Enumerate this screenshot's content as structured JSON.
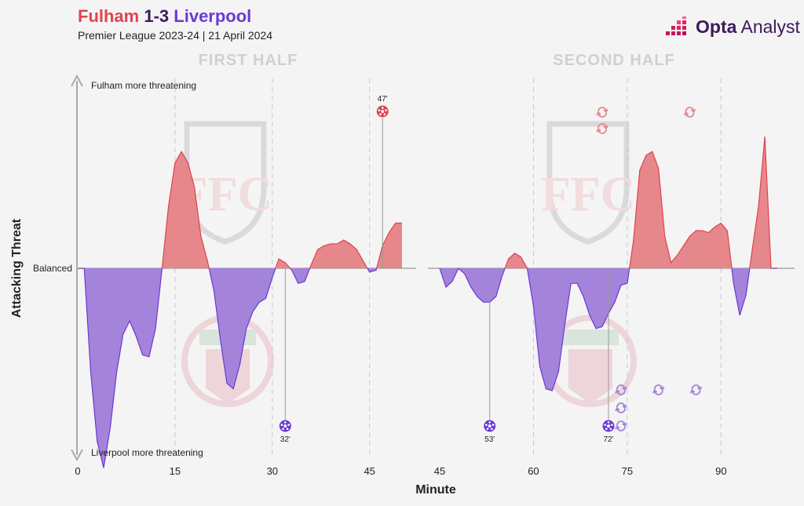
{
  "title": {
    "home": "Fulham",
    "score": "1-3",
    "away": "Liverpool"
  },
  "subtitle": "Premier League 2023-24 | 21 April 2024",
  "brand": {
    "bold": "Opta",
    "rest": " Analyst"
  },
  "colors": {
    "home": "#e0434f",
    "home_fill": "#e6878c",
    "away": "#6a3ad2",
    "away_fill": "#a483db",
    "text": "#222222",
    "axis": "#999999"
  },
  "chart_data": {
    "type": "area",
    "ylabel": "Attacking Threat",
    "xlabel": "Minute",
    "y_top_label": "Fulham more threatening",
    "y_bottom_label": "Liverpool more threatening",
    "baseline_label": "Balanced",
    "panels": [
      {
        "title": "FIRST HALF",
        "xlim": [
          0,
          50
        ],
        "ticks": [
          0,
          15,
          30,
          45
        ],
        "series": [
          [
            0,
            0
          ],
          [
            1,
            0
          ],
          [
            2,
            -0.55
          ],
          [
            3,
            -0.92
          ],
          [
            4,
            -1.06
          ],
          [
            5,
            -0.85
          ],
          [
            6,
            -0.55
          ],
          [
            7,
            -0.35
          ],
          [
            8,
            -0.28
          ],
          [
            9,
            -0.36
          ],
          [
            10,
            -0.46
          ],
          [
            11,
            -0.47
          ],
          [
            12,
            -0.32
          ],
          [
            13,
            0
          ],
          [
            14,
            0.33
          ],
          [
            15,
            0.56
          ],
          [
            16,
            0.62
          ],
          [
            17,
            0.56
          ],
          [
            18,
            0.43
          ],
          [
            19,
            0.17
          ],
          [
            20,
            0.04
          ],
          [
            21,
            -0.12
          ],
          [
            22,
            -0.38
          ],
          [
            23,
            -0.61
          ],
          [
            24,
            -0.64
          ],
          [
            25,
            -0.51
          ],
          [
            26,
            -0.32
          ],
          [
            27,
            -0.23
          ],
          [
            28,
            -0.18
          ],
          [
            29,
            -0.16
          ],
          [
            30,
            -0.05
          ],
          [
            31,
            0.05
          ],
          [
            32,
            0.03
          ],
          [
            33,
            -0.01
          ],
          [
            34,
            -0.08
          ],
          [
            35,
            -0.07
          ],
          [
            36,
            0.02
          ],
          [
            37,
            0.1
          ],
          [
            38,
            0.12
          ],
          [
            39,
            0.13
          ],
          [
            40,
            0.13
          ],
          [
            41,
            0.15
          ],
          [
            42,
            0.13
          ],
          [
            43,
            0.1
          ],
          [
            44,
            0.04
          ],
          [
            45,
            -0.02
          ],
          [
            46,
            -0.01
          ],
          [
            47,
            0.12
          ],
          [
            48,
            0.19
          ],
          [
            49,
            0.24
          ],
          [
            50,
            0.24
          ]
        ],
        "goals": [
          {
            "minute": 47,
            "label": "47'",
            "team": "home"
          },
          {
            "minute": 32,
            "label": "32'",
            "team": "away"
          }
        ],
        "subs": []
      },
      {
        "title": "SECOND HALF",
        "xlim": [
          45,
          99
        ],
        "ticks": [
          45,
          60,
          75,
          90
        ],
        "series": [
          [
            45,
            0
          ],
          [
            46,
            -0.1
          ],
          [
            47,
            -0.07
          ],
          [
            48,
            0
          ],
          [
            49,
            -0.03
          ],
          [
            50,
            -0.1
          ],
          [
            51,
            -0.15
          ],
          [
            52,
            -0.18
          ],
          [
            53,
            -0.18
          ],
          [
            54,
            -0.15
          ],
          [
            55,
            -0.04
          ],
          [
            56,
            0.05
          ],
          [
            57,
            0.08
          ],
          [
            58,
            0.06
          ],
          [
            59,
            0
          ],
          [
            60,
            -0.2
          ],
          [
            61,
            -0.52
          ],
          [
            62,
            -0.64
          ],
          [
            63,
            -0.65
          ],
          [
            64,
            -0.55
          ],
          [
            65,
            -0.3
          ],
          [
            66,
            -0.08
          ],
          [
            67,
            -0.08
          ],
          [
            68,
            -0.15
          ],
          [
            69,
            -0.25
          ],
          [
            70,
            -0.32
          ],
          [
            71,
            -0.31
          ],
          [
            72,
            -0.24
          ],
          [
            73,
            -0.18
          ],
          [
            74,
            -0.09
          ],
          [
            75,
            -0.08
          ],
          [
            76,
            0.15
          ],
          [
            77,
            0.52
          ],
          [
            78,
            0.6
          ],
          [
            79,
            0.62
          ],
          [
            80,
            0.53
          ],
          [
            81,
            0.17
          ],
          [
            82,
            0.03
          ],
          [
            83,
            0.07
          ],
          [
            84,
            0.12
          ],
          [
            85,
            0.17
          ],
          [
            86,
            0.2
          ],
          [
            87,
            0.2
          ],
          [
            88,
            0.19
          ],
          [
            89,
            0.22
          ],
          [
            90,
            0.24
          ],
          [
            91,
            0.2
          ],
          [
            92,
            -0.08
          ],
          [
            93,
            -0.25
          ],
          [
            94,
            -0.14
          ],
          [
            95,
            0.1
          ],
          [
            96,
            0.33
          ],
          [
            97,
            0.7
          ],
          [
            98,
            0
          ],
          [
            99,
            0
          ]
        ],
        "goals": [
          {
            "minute": 53,
            "label": "53'",
            "team": "away"
          },
          {
            "minute": 72,
            "label": "72'",
            "team": "away"
          }
        ],
        "subs": [
          {
            "minute": 71,
            "team": "home",
            "row": 0
          },
          {
            "minute": 71,
            "team": "home",
            "row": 1
          },
          {
            "minute": 85,
            "team": "home",
            "row": 0
          },
          {
            "minute": 74,
            "team": "away",
            "row": 0
          },
          {
            "minute": 74,
            "team": "away",
            "row": 1
          },
          {
            "minute": 74,
            "team": "away",
            "row": 2
          },
          {
            "minute": 80,
            "team": "away",
            "row": 0
          },
          {
            "minute": 86,
            "team": "away",
            "row": 0
          }
        ]
      }
    ]
  }
}
